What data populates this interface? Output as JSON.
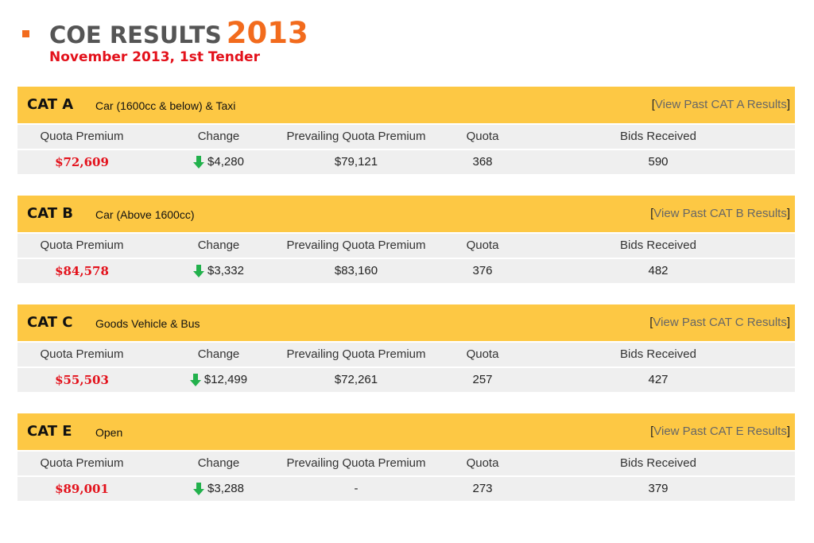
{
  "header": {
    "title": "COE RESULTS",
    "year": "2013",
    "subtitle": "November 2013, 1st Tender"
  },
  "columns": [
    "Quota Premium",
    "Change",
    "Prevailing Quota Premium",
    "Quota",
    "Bids Received"
  ],
  "link_open": "[",
  "link_close": "]",
  "categories": [
    {
      "code": "CAT A",
      "desc": "Car (1600cc & below) & Taxi",
      "link": "View Past CAT A Results",
      "quota_premium": "$72,609",
      "change": "$4,280",
      "prevailing": "$79,121",
      "quota": "368",
      "bids": "590"
    },
    {
      "code": "CAT B",
      "desc": "Car (Above 1600cc)",
      "link": "View Past CAT B Results",
      "quota_premium": "$84,578",
      "change": "$3,332",
      "prevailing": "$83,160",
      "quota": "376",
      "bids": "482"
    },
    {
      "code": "CAT C",
      "desc": "Goods Vehicle & Bus",
      "link": "View Past CAT C Results",
      "quota_premium": "$55,503",
      "change": "$12,499",
      "prevailing": "$72,261",
      "quota": "257",
      "bids": "427"
    },
    {
      "code": "CAT E",
      "desc": "Open",
      "link": "View Past CAT E Results",
      "quota_premium": "$89,001",
      "change": "$3,288",
      "prevailing": "-",
      "quota": "273",
      "bids": "379"
    }
  ],
  "colors": {
    "accent": "#f26b1d",
    "band": "#fdc844",
    "premium": "#e3111b",
    "down_arrow": "#22b14c"
  },
  "icons": {
    "change_direction": "arrow-down-icon"
  }
}
